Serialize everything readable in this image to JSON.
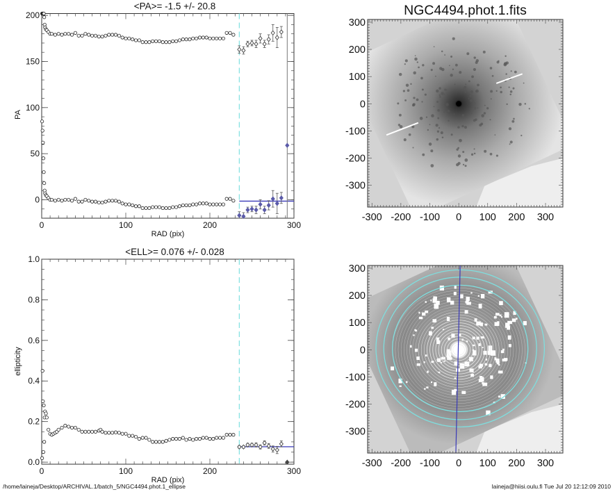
{
  "footer": {
    "path": "/home/laineja/Desktop/ARCHIVAL.1/batch_5/NGC4494.phot.1_ellipse",
    "stamp": "laineja@hiisi.oulu.fi  Tue Jul 20 12:12:09 2010"
  },
  "colors": {
    "cutoff_line": "#7fe0e0",
    "mean_line": "#3a3ab8",
    "points": "#222222",
    "rejected_points": "#5a5aa8",
    "ellipse_rings": "#7fdede",
    "image_background": "#d3d3d3"
  },
  "chart_data": [
    {
      "type": "scatter",
      "title": "<PA>=  -1.5 +/-  20.8",
      "xlabel": "RAD (pix)",
      "ylabel": "PA",
      "xlim": [
        0,
        300
      ],
      "ylim": [
        -20,
        202
      ],
      "xticks": [
        "0",
        "100",
        "200",
        "300"
      ],
      "yticks": [
        "0",
        "50",
        "100",
        "150",
        "200"
      ],
      "xtick_values": [
        0,
        100,
        200,
        300
      ],
      "ytick_values": [
        0,
        50,
        100,
        150,
        200
      ],
      "cutoff_radius": 235,
      "mean": -1.5,
      "error": 20.8,
      "vertical_marker_radius": 292,
      "series": [
        {
          "x": [
            0.5,
            1,
            1.5,
            2,
            2.5,
            3,
            3.5,
            4,
            5,
            6,
            8,
            10,
            12,
            16,
            20,
            24,
            28,
            32,
            36,
            40,
            44,
            48,
            52,
            56,
            60,
            64,
            68,
            72,
            76,
            80,
            84,
            88,
            92,
            96,
            100,
            104,
            108,
            112,
            116,
            120,
            124,
            128,
            132,
            136,
            140,
            144,
            148,
            152,
            156,
            160,
            164,
            168,
            172,
            176,
            180,
            184,
            188,
            192,
            196,
            200,
            204,
            208,
            212,
            216,
            220,
            224,
            228
          ],
          "y": [
            85,
            75,
            62,
            45,
            30,
            18,
            10,
            7,
            5,
            4,
            2,
            0,
            0,
            -1,
            0,
            -1,
            0,
            0,
            -1,
            1,
            -2,
            -2,
            0,
            -1,
            -2,
            -2,
            -3,
            -3,
            -2,
            -1,
            -1,
            -1,
            -2,
            -4,
            -5,
            -5,
            -6,
            -7,
            -7,
            -9,
            -9,
            -9,
            -8,
            -8,
            -8,
            -9,
            -9,
            -9,
            -8,
            -8,
            -7,
            -6,
            -6,
            -6,
            -5,
            -5,
            -4,
            -4,
            -4,
            -5,
            -5,
            -5,
            -5,
            -5,
            1,
            1,
            -1
          ]
        },
        {
          "x": [
            235,
            240,
            245,
            250,
            255,
            260,
            265,
            270,
            275,
            280,
            285
          ],
          "y": [
            -17,
            -18,
            -11,
            -10,
            -11,
            -5,
            -11,
            -6,
            1,
            -4,
            2
          ],
          "err": [
            4,
            4,
            3,
            3,
            4,
            5,
            4,
            5,
            9,
            11,
            6
          ]
        },
        {
          "x": [
            292
          ],
          "y": [
            59
          ]
        }
      ]
    },
    {
      "type": "scatter",
      "title": "<ELL>= 0.076 +/-  0.028",
      "xlabel": "RAD (pix)",
      "ylabel": "ellipticity",
      "xlim": [
        0,
        300
      ],
      "ylim": [
        -0.01,
        1.0
      ],
      "xticks": [
        "0",
        "100",
        "200",
        "300"
      ],
      "yticks": [
        "0.0",
        "0.2",
        "0.4",
        "0.6",
        "0.8",
        "1.0"
      ],
      "xtick_values": [
        0,
        100,
        200,
        300
      ],
      "ytick_values": [
        0,
        0.2,
        0.4,
        0.6,
        0.8,
        1.0
      ],
      "cutoff_radius": 235,
      "mean": 0.076,
      "error": 0.028,
      "series": [
        {
          "x": [
            0.5,
            1,
            1.5,
            2,
            2.5,
            3,
            3.5,
            4,
            5,
            6,
            8,
            10,
            12,
            14,
            16,
            18,
            20,
            24,
            28,
            32,
            36,
            40,
            44,
            48,
            52,
            56,
            60,
            64,
            68,
            70,
            72,
            76,
            80,
            84,
            88,
            92,
            96,
            100,
            104,
            108,
            112,
            116,
            120,
            124,
            128,
            132,
            136,
            140,
            144,
            148,
            152,
            156,
            160,
            164,
            168,
            172,
            176,
            180,
            184,
            188,
            192,
            196,
            200,
            204,
            208,
            212,
            216,
            220,
            224,
            228
          ],
          "y": [
            0.02,
            0.45,
            0.3,
            0.05,
            0.28,
            0.1,
            0.22,
            0.25,
            0.24,
            0.22,
            0.16,
            0.14,
            0.135,
            0.14,
            0.145,
            0.15,
            0.16,
            0.17,
            0.18,
            0.175,
            0.17,
            0.17,
            0.16,
            0.15,
            0.15,
            0.15,
            0.15,
            0.15,
            0.155,
            0.16,
            0.15,
            0.145,
            0.145,
            0.145,
            0.147,
            0.145,
            0.14,
            0.14,
            0.13,
            0.13,
            0.125,
            0.115,
            0.12,
            0.12,
            0.11,
            0.1,
            0.1,
            0.1,
            0.1,
            0.105,
            0.11,
            0.115,
            0.115,
            0.115,
            0.12,
            0.11,
            0.115,
            0.11,
            0.115,
            0.115,
            0.12,
            0.12,
            0.115,
            0.115,
            0.12,
            0.12,
            0.12,
            0.135,
            0.135,
            0.135
          ]
        },
        {
          "x": [
            235,
            240,
            245,
            250,
            255,
            260,
            265,
            270,
            275,
            280,
            285
          ],
          "y": [
            0.075,
            0.075,
            0.085,
            0.085,
            0.085,
            0.075,
            0.095,
            0.08,
            0.065,
            0.06,
            0.09
          ],
          "err": [
            0.006,
            0.006,
            0.008,
            0.008,
            0.01,
            0.01,
            0.01,
            0.012,
            0.015,
            0.018,
            0.015
          ]
        },
        {
          "x": [
            292
          ],
          "y": [
            0.0
          ]
        }
      ]
    },
    {
      "type": "heatmap",
      "title": "NGC4494.phot.1.fits",
      "xlim": [
        -315,
        360
      ],
      "ylim": [
        -380,
        310
      ],
      "xticks": [
        "-300",
        "-200",
        "-100",
        "0",
        "100",
        "200",
        "300"
      ],
      "yticks": [
        "-300",
        "-200",
        "-100",
        "0",
        "100",
        "200",
        "300"
      ],
      "tick_values": [
        -300,
        -200,
        -100,
        0,
        100,
        200,
        300
      ],
      "colormap": "inverted grayscale"
    },
    {
      "type": "heatmap",
      "title": "",
      "xlim": [
        -315,
        360
      ],
      "ylim": [
        -380,
        310
      ],
      "xticks": [
        "-300",
        "-200",
        "-100",
        "0",
        "100",
        "200",
        "300"
      ],
      "yticks": [
        "-300",
        "-200",
        "-100",
        "0",
        "100",
        "200",
        "300"
      ],
      "tick_values": [
        -300,
        -200,
        -100,
        0,
        100,
        200,
        300
      ],
      "ring_radii": [
        235,
        265,
        292
      ],
      "colormap": "grayscale with masked regions"
    }
  ]
}
